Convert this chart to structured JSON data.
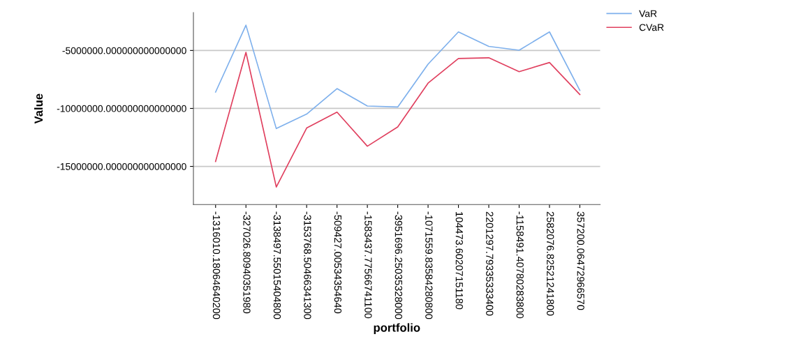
{
  "chart_data": {
    "type": "line",
    "xlabel": "portfolio",
    "ylabel": "Value",
    "categories": [
      "-1316010.18064640200",
      "-327026.80940351980",
      "-3138497.55015404800",
      "-3153768.50466341300",
      "-509427.00534354640",
      "-1583437.77566741100",
      "-3951696.25035328000",
      "-1071559.83584280800",
      "104473.60207151180",
      "2201297.79335333400",
      "-1158491.40780283800",
      "2582076.82521241800",
      "357200.06472966570"
    ],
    "series": [
      {
        "name": "VaR",
        "color": "#7eb0ec",
        "values": [
          -8590000,
          -2820000,
          -11740000,
          -10490000,
          -8290000,
          -9790000,
          -9880000,
          -6180000,
          -3400000,
          -4650000,
          -4980000,
          -3400000,
          -8450000
        ]
      },
      {
        "name": "CVaR",
        "color": "#e0405f",
        "values": [
          -14580000,
          -5160000,
          -16780000,
          -11690000,
          -10320000,
          -13260000,
          -11600000,
          -7820000,
          -5690000,
          -5630000,
          -6830000,
          -6040000,
          -8800000
        ]
      }
    ],
    "ylim": [
      -18290000,
      -1740000
    ],
    "yticks": [
      {
        "value": -15000000,
        "label": "-15000000.000000000000000"
      },
      {
        "value": -10000000,
        "label": "-10000000.000000000000000"
      },
      {
        "value": -5000000,
        "label": "-5000000.000000000000000"
      }
    ],
    "grid": "y",
    "legend": "top right",
    "marker": "none",
    "line_style": "solid"
  }
}
